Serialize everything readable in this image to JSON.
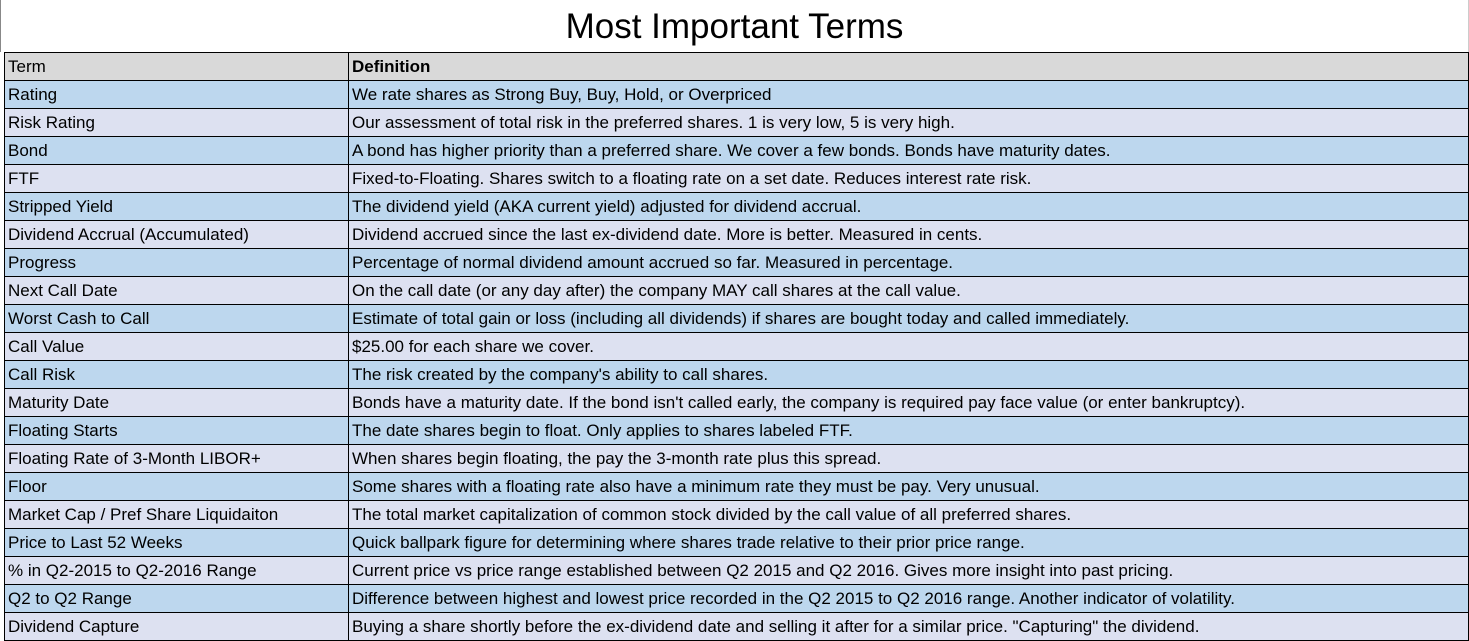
{
  "header": {
    "title": "Most Important Terms"
  },
  "table": {
    "columns": [
      "Term",
      "Definition"
    ],
    "rows": [
      [
        "Rating",
        "We rate shares as Strong Buy, Buy, Hold, or Overpriced"
      ],
      [
        "Risk Rating",
        "Our assessment of total risk in the preferred shares. 1 is very low, 5 is very high."
      ],
      [
        "Bond",
        "A bond has higher priority than a preferred share. We cover a few bonds. Bonds have maturity dates."
      ],
      [
        "FTF",
        "Fixed-to-Floating. Shares switch to a floating rate on a set date. Reduces interest rate risk."
      ],
      [
        "Stripped Yield",
        "The dividend yield (AKA current yield) adjusted for dividend accrual."
      ],
      [
        "Dividend Accrual (Accumulated)",
        "Dividend accrued since the last ex-dividend date. More is better. Measured in cents."
      ],
      [
        "Progress",
        "Percentage of normal dividend amount accrued so far. Measured in percentage."
      ],
      [
        "Next Call Date",
        "On the call date (or any day after)  the company MAY call shares at the call value."
      ],
      [
        "Worst Cash to Call",
        "Estimate of total gain or loss (including all dividends) if shares are bought today and called immediately."
      ],
      [
        "Call Value",
        "$25.00 for each share we cover."
      ],
      [
        "Call Risk",
        "The risk created by the company's ability to call shares."
      ],
      [
        "Maturity Date",
        "Bonds have a maturity date. If the bond isn't called early, the company is required pay face value (or enter bankruptcy)."
      ],
      [
        "Floating Starts",
        "The date shares begin to float. Only applies to shares labeled FTF."
      ],
      [
        "Floating Rate of 3-Month LIBOR+",
        "When shares begin floating, the pay the 3-month rate plus this spread."
      ],
      [
        "Floor",
        "Some shares with a floating rate also have a minimum rate they must be pay. Very unusual."
      ],
      [
        "Market Cap / Pref Share Liquidaiton",
        "The total market capitalization of common stock divided by the call value of all preferred shares."
      ],
      [
        "Price to Last 52 Weeks",
        "Quick ballpark figure for determining where shares trade relative to their prior price range."
      ],
      [
        "% in Q2-2015 to Q2-2016 Range",
        "Current price vs price range established between Q2 2015 and Q2 2016. Gives more insight into past pricing."
      ],
      [
        "Q2 to Q2 Range",
        "Difference between highest and lowest price recorded in the Q2 2015 to Q2 2016 range. Another indicator of volatility."
      ],
      [
        "Dividend Capture",
        "Buying a share shortly before the ex-dividend date and selling it after for a similar price. \"Capturing\" the dividend."
      ]
    ]
  }
}
